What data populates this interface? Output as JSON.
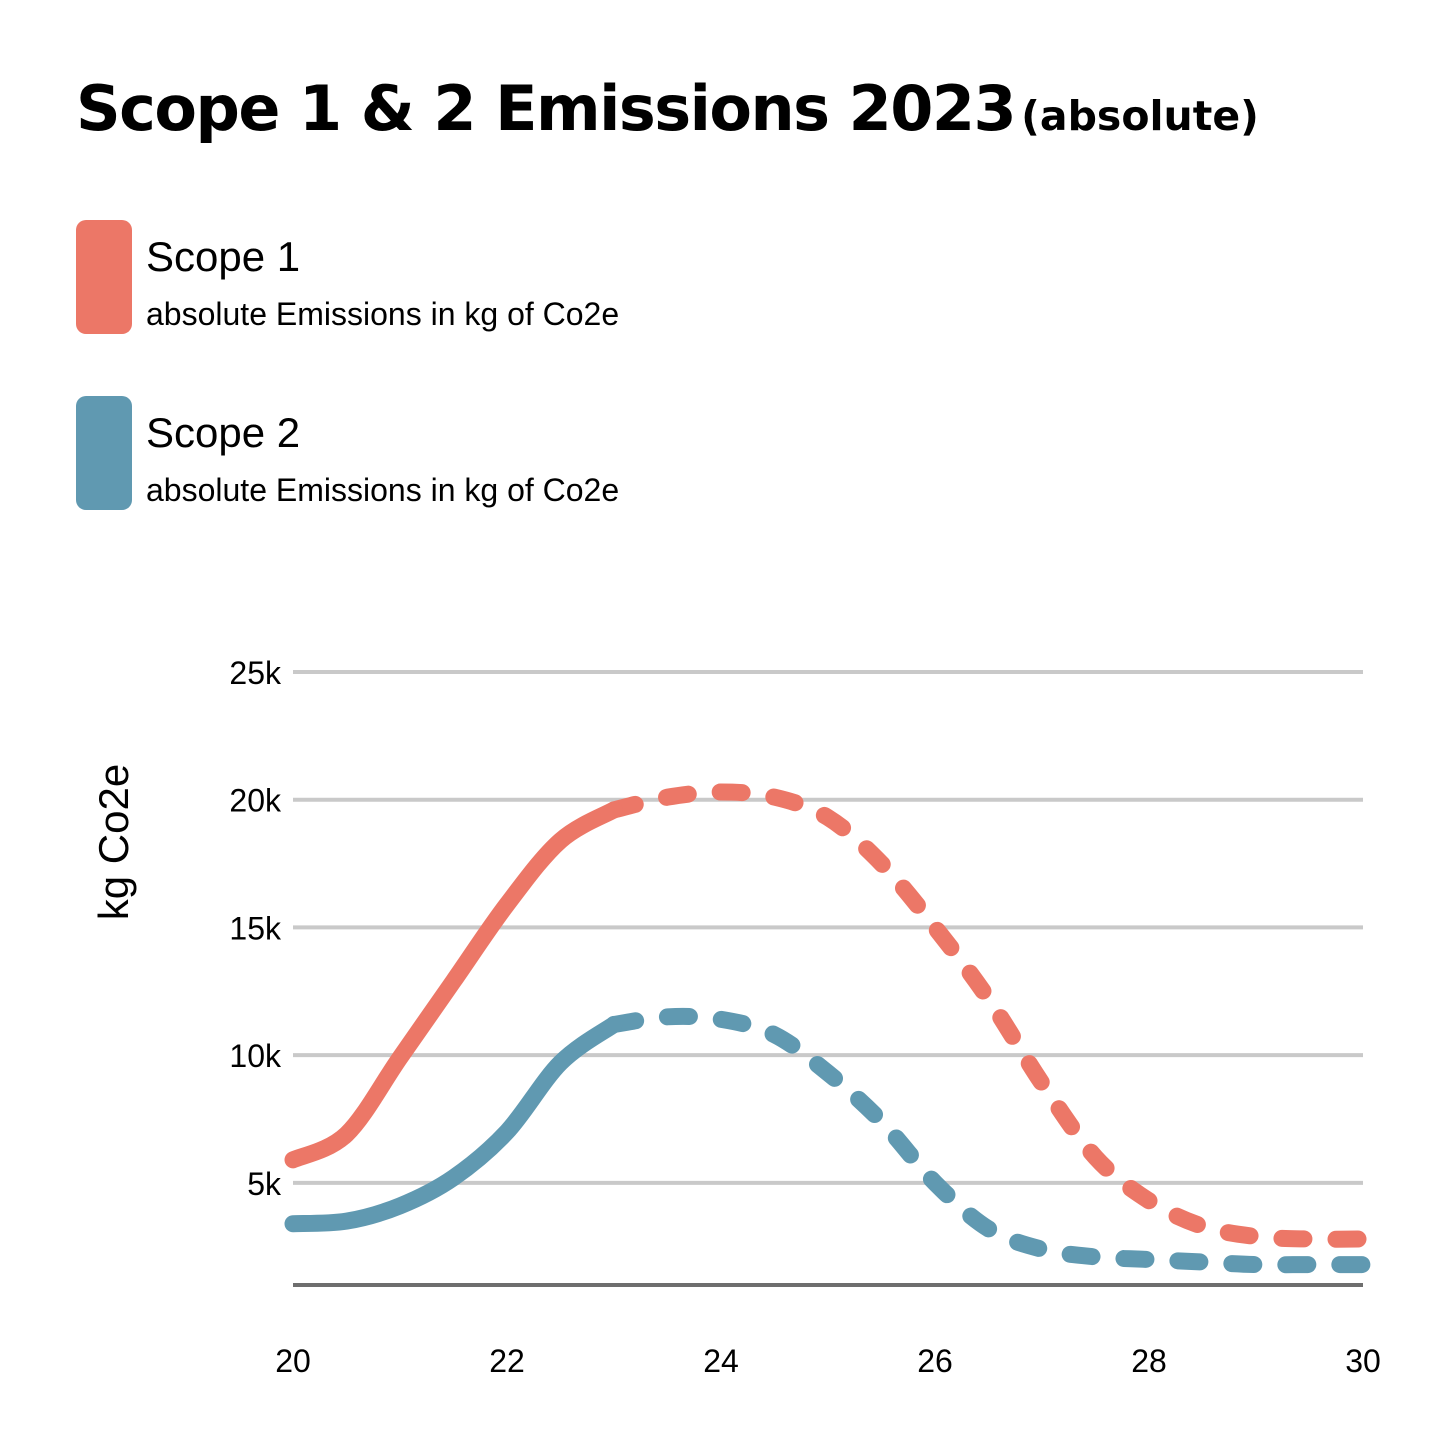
{
  "title": {
    "main": "Scope 1 & 2  Emissions 2023",
    "sub": "(absolute)"
  },
  "legend": [
    {
      "name": "Scope 1",
      "description": "absolute Emissions in kg of Co2e",
      "color": "#EC7767"
    },
    {
      "name": "Scope 2",
      "description": "absolute Emissions in kg of Co2e",
      "color": "#6099B1"
    }
  ],
  "chart_data": {
    "type": "line",
    "ylabel": "kg Co2e",
    "xlabel": "",
    "xlim": [
      20,
      30
    ],
    "ylim": [
      1000,
      25000
    ],
    "x_ticks": [
      "20",
      "22",
      "24",
      "26",
      "28",
      "30"
    ],
    "y_ticks": [
      "5k",
      "10k",
      "15k",
      "20k",
      "25k"
    ],
    "grid": true,
    "legend_position": "top-left",
    "series": [
      {
        "name": "Scope 1",
        "color": "#EC7767",
        "actual": {
          "x": [
            20,
            20.5,
            21,
            21.5,
            22,
            22.5,
            23
          ],
          "y": [
            5900,
            6900,
            9900,
            12900,
            15900,
            18400,
            19600
          ]
        },
        "projected": {
          "x": [
            23,
            23.5,
            24,
            24.5,
            25,
            25.5,
            26,
            26.5,
            27,
            27.5,
            28,
            28.5,
            29,
            29.5,
            30
          ],
          "y": [
            19600,
            20100,
            20300,
            20100,
            19300,
            17500,
            15000,
            12200,
            8900,
            6000,
            4300,
            3300,
            2900,
            2800,
            2800
          ]
        }
      },
      {
        "name": "Scope 2",
        "color": "#6099B1",
        "actual": {
          "x": [
            20,
            20.5,
            21,
            21.5,
            22,
            22.5,
            23
          ],
          "y": [
            3400,
            3500,
            4100,
            5200,
            7000,
            9700,
            11200
          ]
        },
        "projected": {
          "x": [
            23,
            23.5,
            24,
            24.5,
            25,
            25.5,
            26,
            26.5,
            27,
            27.5,
            28,
            28.5,
            29,
            29.5,
            30
          ],
          "y": [
            11200,
            11500,
            11400,
            10800,
            9300,
            7400,
            5000,
            3200,
            2400,
            2100,
            2000,
            1900,
            1800,
            1800,
            1800
          ]
        }
      }
    ]
  }
}
